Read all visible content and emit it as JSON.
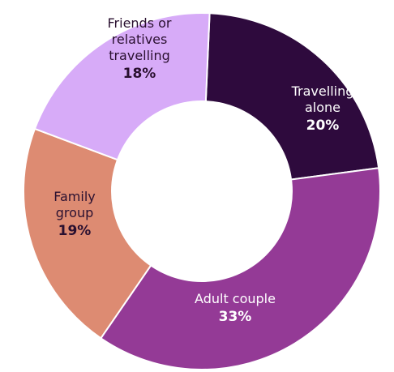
{
  "chart_data": {
    "type": "pie",
    "title": "",
    "slices": [
      {
        "lines": [
          "Travelling",
          "alone"
        ],
        "percent_label": "20%",
        "value": 20,
        "color": "#2e0a3d",
        "text_color": "#ffffff"
      },
      {
        "lines": [
          "Adult couple"
        ],
        "percent_label": "33%",
        "value": 33,
        "color": "#943a96",
        "text_color": "#ffffff"
      },
      {
        "lines": [
          "Family",
          "group"
        ],
        "percent_label": "19%",
        "value": 19,
        "color": "#dd8b72",
        "text_color": "#2a1030"
      },
      {
        "lines": [
          "Friends or",
          "relatives",
          "travelling"
        ],
        "percent_label": "18%",
        "value": 18,
        "color": "#d7abf8",
        "text_color": "#2a1030"
      }
    ]
  }
}
